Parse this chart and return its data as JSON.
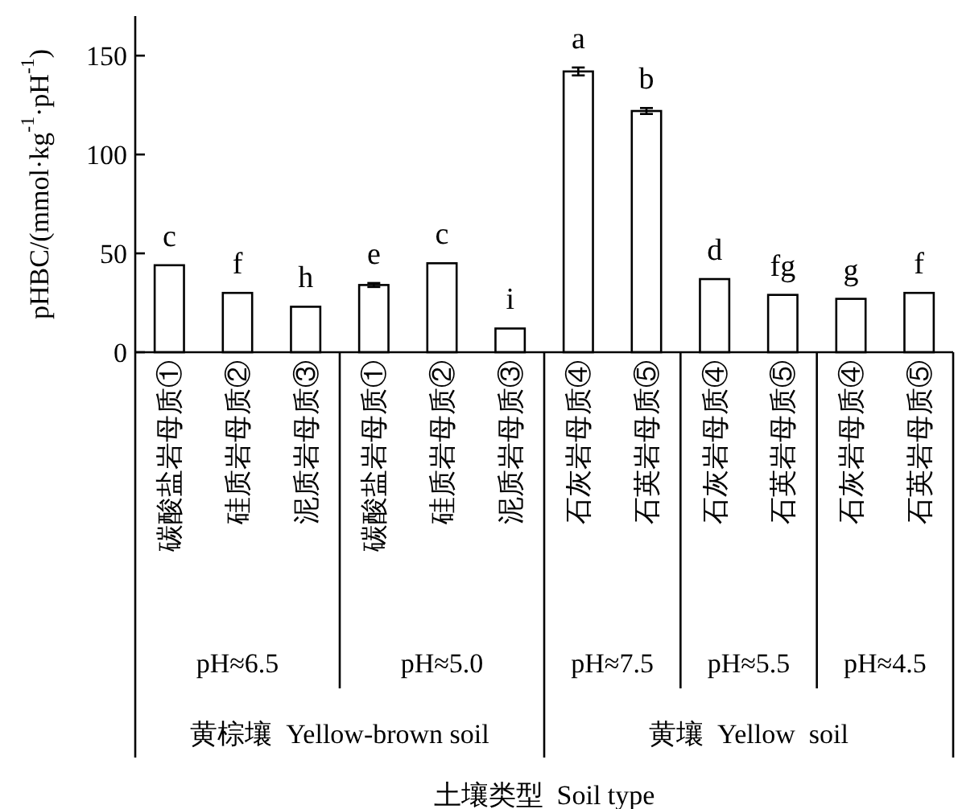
{
  "chart_data": {
    "type": "bar",
    "ylabel": "pHBC/(mmol·kg$^{-1}$·pH$^{-1}$)",
    "categories": [
      "碳酸盐岩母质①",
      "硅质岩母质②",
      "泥质岩母质③",
      "碳酸盐岩母质①",
      "硅质岩母质②",
      "泥质岩母质③",
      "石灰岩母质④",
      "石英岩母质⑤",
      "石灰岩母质④",
      "石英岩母质⑤",
      "石灰岩母质④",
      "石英岩母质⑤"
    ],
    "values": [
      44,
      30,
      23,
      34,
      45,
      12,
      142,
      122,
      37,
      29,
      27,
      30
    ],
    "errors": [
      null,
      null,
      null,
      1,
      null,
      null,
      2,
      1.5,
      null,
      null,
      null,
      null
    ],
    "value_labels": [
      "c",
      "f",
      "h",
      "e",
      "c",
      "i",
      "a",
      "b",
      "d",
      "fg",
      "g",
      "f"
    ],
    "color": "#ffffff",
    "ylim": [
      0,
      170
    ],
    "yticks": [
      0,
      50,
      100,
      150
    ],
    "annotations": [
      "pH≈6.5",
      "pH≈5.0",
      "pH≈7.5",
      "pH≈5.5",
      "pH≈4.5",
      "黄棕壤  Yellow-brown soil",
      "黄壤  Yellow  soil",
      "土壤类型  Soil type"
    ]
  }
}
